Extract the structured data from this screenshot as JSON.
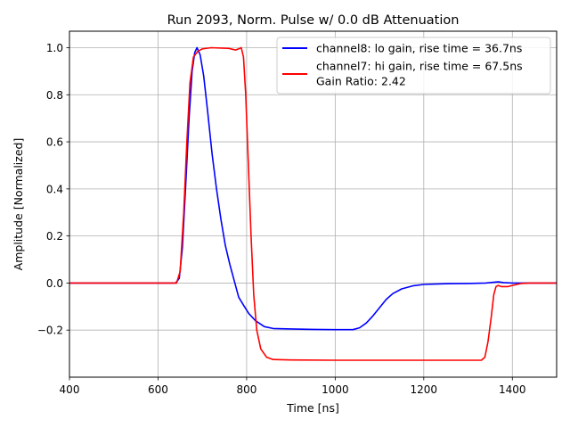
{
  "chart_data": {
    "type": "line",
    "title": "Run 2093, Norm. Pulse w/ 0.0 dB Attenuation",
    "xlabel": "Time [ns]",
    "ylabel": "Amplitude [Normalized]",
    "xlim": [
      400,
      1500
    ],
    "ylim": [
      -0.4,
      1.07
    ],
    "xticks": [
      400,
      600,
      800,
      1000,
      1200,
      1400
    ],
    "yticks": [
      -0.2,
      0.0,
      0.2,
      0.4,
      0.6,
      0.8,
      1.0
    ],
    "ytick_labels": [
      "−0.2",
      "0.0",
      "0.2",
      "0.4",
      "0.6",
      "0.8",
      "1.0"
    ],
    "grid": true,
    "legend_position": "top-right",
    "annotation": "Gain Ratio: 2.42",
    "series": [
      {
        "name": "channel8: lo gain, rise time = 36.7ns",
        "color": "#0000ff",
        "points": [
          [
            400,
            0
          ],
          [
            600,
            0
          ],
          [
            640,
            0
          ],
          [
            648,
            0.02
          ],
          [
            655,
            0.15
          ],
          [
            662,
            0.4
          ],
          [
            670,
            0.7
          ],
          [
            677,
            0.9
          ],
          [
            683,
            0.98
          ],
          [
            688,
            1.0
          ],
          [
            695,
            0.97
          ],
          [
            703,
            0.88
          ],
          [
            712,
            0.73
          ],
          [
            722,
            0.55
          ],
          [
            732,
            0.4
          ],
          [
            742,
            0.27
          ],
          [
            752,
            0.16
          ],
          [
            762,
            0.08
          ],
          [
            772,
            0.01
          ],
          [
            782,
            -0.06
          ],
          [
            795,
            -0.1
          ],
          [
            805,
            -0.13
          ],
          [
            820,
            -0.16
          ],
          [
            840,
            -0.185
          ],
          [
            860,
            -0.193
          ],
          [
            900,
            -0.195
          ],
          [
            950,
            -0.197
          ],
          [
            1000,
            -0.198
          ],
          [
            1040,
            -0.198
          ],
          [
            1055,
            -0.19
          ],
          [
            1070,
            -0.17
          ],
          [
            1085,
            -0.14
          ],
          [
            1100,
            -0.105
          ],
          [
            1115,
            -0.07
          ],
          [
            1130,
            -0.045
          ],
          [
            1150,
            -0.025
          ],
          [
            1175,
            -0.012
          ],
          [
            1200,
            -0.006
          ],
          [
            1250,
            -0.003
          ],
          [
            1300,
            -0.002
          ],
          [
            1340,
            0
          ],
          [
            1360,
            0.004
          ],
          [
            1368,
            0.005
          ],
          [
            1380,
            0.002
          ],
          [
            1400,
            0
          ],
          [
            1500,
            0
          ]
        ]
      },
      {
        "name": "channel7: hi gain, rise time = 67.5ns",
        "color": "#ff0000",
        "points": [
          [
            400,
            0
          ],
          [
            600,
            0
          ],
          [
            642,
            0
          ],
          [
            650,
            0.05
          ],
          [
            658,
            0.3
          ],
          [
            665,
            0.6
          ],
          [
            672,
            0.85
          ],
          [
            680,
            0.96
          ],
          [
            690,
            0.985
          ],
          [
            700,
            0.995
          ],
          [
            720,
            1.0
          ],
          [
            760,
            0.997
          ],
          [
            775,
            0.99
          ],
          [
            782,
            0.995
          ],
          [
            788,
            1.0
          ],
          [
            793,
            0.96
          ],
          [
            798,
            0.8
          ],
          [
            804,
            0.5
          ],
          [
            810,
            0.2
          ],
          [
            816,
            -0.05
          ],
          [
            823,
            -0.2
          ],
          [
            832,
            -0.28
          ],
          [
            845,
            -0.315
          ],
          [
            860,
            -0.325
          ],
          [
            900,
            -0.327
          ],
          [
            1000,
            -0.328
          ],
          [
            1100,
            -0.328
          ],
          [
            1200,
            -0.328
          ],
          [
            1300,
            -0.328
          ],
          [
            1330,
            -0.328
          ],
          [
            1338,
            -0.315
          ],
          [
            1345,
            -0.25
          ],
          [
            1352,
            -0.15
          ],
          [
            1358,
            -0.05
          ],
          [
            1363,
            -0.015
          ],
          [
            1368,
            -0.01
          ],
          [
            1375,
            -0.015
          ],
          [
            1390,
            -0.015
          ],
          [
            1400,
            -0.01
          ],
          [
            1420,
            -0.002
          ],
          [
            1440,
            0
          ],
          [
            1500,
            0
          ]
        ]
      }
    ]
  }
}
